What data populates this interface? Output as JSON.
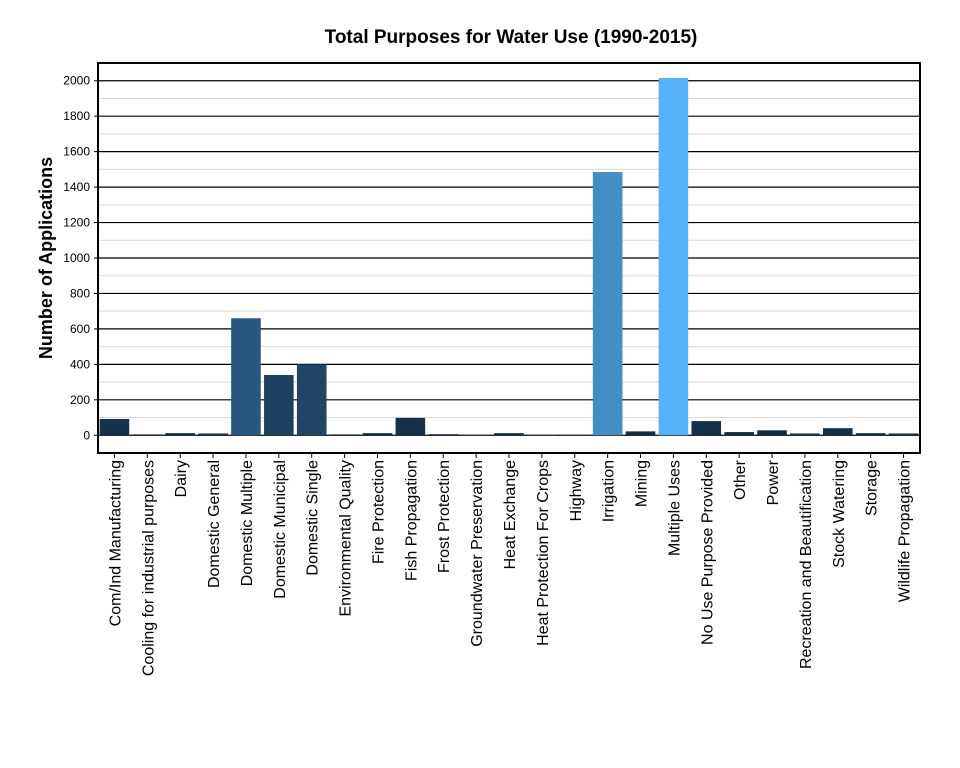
{
  "chart_data": {
    "type": "bar",
    "title": "Total Purposes for Water Use (1990-2015)",
    "xlabel": "",
    "ylabel": "Number of Applications",
    "ylim": [
      -100,
      2100
    ],
    "yticks": [
      0,
      200,
      400,
      600,
      800,
      1000,
      1200,
      1400,
      1600,
      1800,
      2000
    ],
    "grid": true,
    "legend": "none",
    "color_scale": {
      "low": "#132b43",
      "high": "#56b1f7"
    },
    "categories": [
      "Com/Ind Manufacturing",
      "Cooling for industrial purposes",
      "Dairy",
      "Domestic General",
      "Domestic Multiple",
      "Domestic Municipal",
      "Domestic Single",
      "Environmental Quality",
      "Fire Protection",
      "Fish Propagation",
      "Frost Protection",
      "Groundwater Preservation",
      "Heat Exchange",
      "Heat Protection For Crops",
      "Highway",
      "Irrigation",
      "Mining",
      "Multiple Uses",
      "No Use Purpose Provided",
      "Other",
      "Power",
      "Recreation and Beautification",
      "Stock Watering",
      "Storage",
      "Wildlife Propagation"
    ],
    "values": [
      92,
      5,
      12,
      10,
      660,
      340,
      400,
      5,
      12,
      98,
      6,
      2,
      12,
      2,
      2,
      1485,
      22,
      2015,
      80,
      18,
      28,
      10,
      40,
      12,
      10
    ]
  }
}
